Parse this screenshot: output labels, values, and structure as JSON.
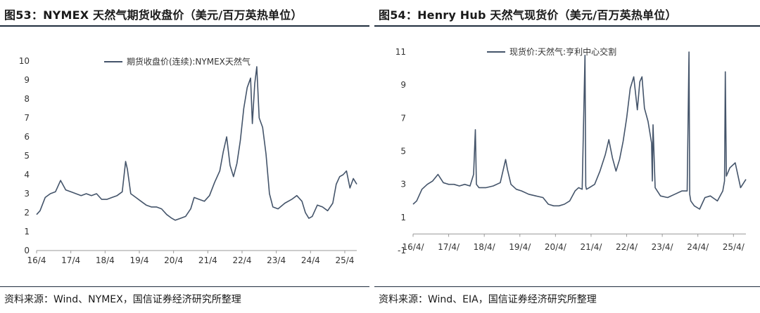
{
  "left": {
    "title": "图53：NYMEX 天然气期货收盘价（美元/百万英热单位）",
    "source": "资料来源：Wind、NYMEX，国信证券经济研究所整理"
  },
  "right": {
    "title": "图54：Henry Hub 天然气现货价（美元/百万英热单位）",
    "source": "资料来源：Wind、EIA，国信证券经济研究所整理"
  },
  "colors": {
    "line": "#44546a",
    "rule": "#1f2d3d"
  },
  "chart_data": [
    {
      "type": "line",
      "title": "",
      "legend_position": "top-center",
      "grid": false,
      "ylim": [
        0,
        10
      ],
      "yticks": [
        "0",
        "1",
        "2",
        "3",
        "4",
        "5",
        "6",
        "7",
        "8",
        "9",
        "10"
      ],
      "xlim": [
        2016.25,
        2025.6
      ],
      "xticks": [
        {
          "label": "16/4",
          "x": 2016.25
        },
        {
          "label": "17/4",
          "x": 2017.25
        },
        {
          "label": "18/4",
          "x": 2018.25
        },
        {
          "label": "19/4",
          "x": 2019.25
        },
        {
          "label": "20/4",
          "x": 2020.25
        },
        {
          "label": "21/4",
          "x": 2021.25
        },
        {
          "label": "22/4",
          "x": 2022.25
        },
        {
          "label": "23/4",
          "x": 2023.25
        },
        {
          "label": "24/4",
          "x": 2024.25
        },
        {
          "label": "25/4",
          "x": 2025.25
        }
      ],
      "series": [
        {
          "name": "期货收盘价(连续):NYMEX天然气",
          "x": [
            2016.25,
            2016.35,
            2016.5,
            2016.65,
            2016.8,
            2016.95,
            2017.1,
            2017.25,
            2017.4,
            2017.55,
            2017.7,
            2017.85,
            2018.0,
            2018.15,
            2018.3,
            2018.45,
            2018.6,
            2018.75,
            2018.85,
            2018.9,
            2019.0,
            2019.15,
            2019.3,
            2019.45,
            2019.6,
            2019.75,
            2019.9,
            2020.05,
            2020.2,
            2020.3,
            2020.45,
            2020.6,
            2020.75,
            2020.85,
            2021.0,
            2021.15,
            2021.3,
            2021.45,
            2021.6,
            2021.7,
            2021.8,
            2021.9,
            2022.0,
            2022.1,
            2022.2,
            2022.3,
            2022.4,
            2022.5,
            2022.55,
            2022.62,
            2022.68,
            2022.75,
            2022.85,
            2022.95,
            2023.05,
            2023.15,
            2023.3,
            2023.5,
            2023.7,
            2023.85,
            2024.0,
            2024.1,
            2024.2,
            2024.3,
            2024.45,
            2024.6,
            2024.75,
            2024.9,
            2025.0,
            2025.1,
            2025.2,
            2025.3,
            2025.4,
            2025.5,
            2025.6
          ],
          "values": [
            1.9,
            2.1,
            2.8,
            3.0,
            3.1,
            3.7,
            3.2,
            3.1,
            3.0,
            2.9,
            3.0,
            2.9,
            3.0,
            2.7,
            2.7,
            2.8,
            2.9,
            3.1,
            4.7,
            4.3,
            3.0,
            2.8,
            2.6,
            2.4,
            2.3,
            2.3,
            2.2,
            1.9,
            1.7,
            1.6,
            1.7,
            1.8,
            2.2,
            2.8,
            2.7,
            2.6,
            2.9,
            3.6,
            4.2,
            5.2,
            6.0,
            4.5,
            3.9,
            4.6,
            5.8,
            7.5,
            8.6,
            9.1,
            6.7,
            8.8,
            9.7,
            7.0,
            6.5,
            5.1,
            3.0,
            2.3,
            2.2,
            2.5,
            2.7,
            2.9,
            2.6,
            2.0,
            1.7,
            1.8,
            2.4,
            2.3,
            2.1,
            2.5,
            3.5,
            3.9,
            4.0,
            4.2,
            3.3,
            3.8,
            3.5
          ]
        }
      ]
    },
    {
      "type": "line",
      "title": "",
      "legend_position": "top-center",
      "grid": false,
      "ylim": [
        -1,
        11
      ],
      "yticks": [
        "-1",
        "1",
        "3",
        "5",
        "7",
        "9",
        "11"
      ],
      "xlim": [
        2016.25,
        2025.6
      ],
      "xticks": [
        {
          "label": "16/4/",
          "x": 2016.25
        },
        {
          "label": "17/4/",
          "x": 2017.25
        },
        {
          "label": "18/4/",
          "x": 2018.25
        },
        {
          "label": "19/4/",
          "x": 2019.25
        },
        {
          "label": "20/4/",
          "x": 2020.25
        },
        {
          "label": "21/4/",
          "x": 2021.25
        },
        {
          "label": "22/4/",
          "x": 2022.25
        },
        {
          "label": "23/4/",
          "x": 2023.25
        },
        {
          "label": "24/4/",
          "x": 2024.25
        },
        {
          "label": "25/4/",
          "x": 2025.25
        }
      ],
      "series": [
        {
          "name": "现货价:天然气:亨利中心交割",
          "x": [
            2016.25,
            2016.35,
            2016.5,
            2016.65,
            2016.8,
            2016.95,
            2017.1,
            2017.25,
            2017.4,
            2017.55,
            2017.7,
            2017.85,
            2017.95,
            2018.0,
            2018.03,
            2018.1,
            2018.3,
            2018.5,
            2018.7,
            2018.85,
            2018.9,
            2019.0,
            2019.15,
            2019.3,
            2019.5,
            2019.7,
            2019.9,
            2020.05,
            2020.2,
            2020.35,
            2020.5,
            2020.65,
            2020.8,
            2020.9,
            2021.0,
            2021.08,
            2021.1,
            2021.12,
            2021.2,
            2021.35,
            2021.5,
            2021.65,
            2021.75,
            2021.85,
            2021.95,
            2022.05,
            2022.15,
            2022.25,
            2022.35,
            2022.45,
            2022.55,
            2022.62,
            2022.68,
            2022.75,
            2022.85,
            2022.95,
            2022.97,
            2022.99,
            2023.05,
            2023.2,
            2023.4,
            2023.6,
            2023.8,
            2023.95,
            2024.0,
            2024.02,
            2024.05,
            2024.15,
            2024.3,
            2024.45,
            2024.6,
            2024.8,
            2024.95,
            2025.0,
            2025.02,
            2025.05,
            2025.15,
            2025.3,
            2025.45,
            2025.6
          ],
          "values": [
            1.8,
            2.0,
            2.7,
            3.0,
            3.2,
            3.6,
            3.1,
            3.0,
            3.0,
            2.9,
            3.0,
            2.9,
            3.6,
            6.3,
            3.0,
            2.8,
            2.8,
            2.9,
            3.1,
            4.5,
            3.9,
            3.0,
            2.7,
            2.6,
            2.4,
            2.3,
            2.2,
            1.8,
            1.7,
            1.7,
            1.8,
            2.0,
            2.6,
            2.8,
            2.7,
            10.8,
            2.9,
            2.7,
            2.8,
            3.0,
            3.8,
            4.8,
            5.7,
            4.6,
            3.8,
            4.5,
            5.6,
            7.0,
            8.8,
            9.5,
            7.5,
            9.2,
            9.5,
            7.6,
            6.8,
            5.5,
            3.2,
            6.6,
            2.8,
            2.3,
            2.2,
            2.4,
            2.6,
            2.6,
            11.0,
            2.4,
            2.0,
            1.7,
            1.5,
            2.2,
            2.3,
            2.0,
            2.6,
            3.2,
            9.8,
            3.5,
            4.0,
            4.3,
            2.8,
            3.3
          ]
        }
      ]
    }
  ]
}
